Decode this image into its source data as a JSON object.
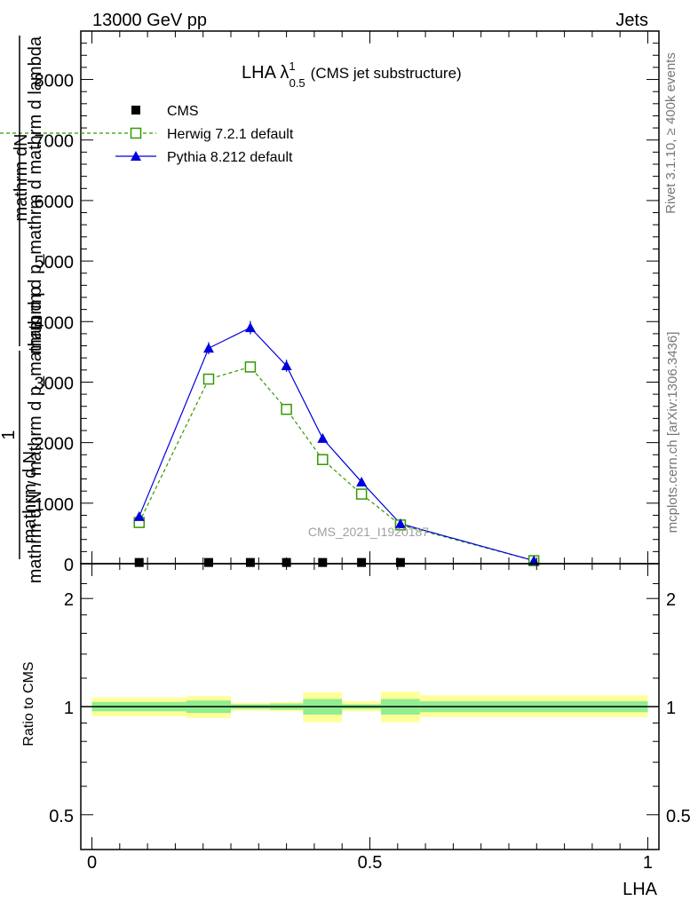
{
  "header": {
    "left": "13000 GeV pp",
    "right": "Jets"
  },
  "side": {
    "rivet": "Rivet 3.1.10, ≥ 400k events",
    "mcplots": "mcplots.cern.ch [arXiv:1306.3436]"
  },
  "chart_data": {
    "type": "line",
    "title_main": "LHA λ",
    "title_sup": "1",
    "title_sub": "0.5",
    "title_note": "(CMS jet substructure)",
    "watermark": "CMS_2021_I1920187",
    "ylabel_num": "mathrm dN",
    "ylabel_den": "mathrm d p_mathrm d mathrm d lambda",
    "ylabel_one": "1",
    "ylabel_den2": "mathrm d N / mathrm d p_mathrm d p",
    "ylabel_den3": "mathrm d N",
    "xlabel": "LHA",
    "ratio_ylabel": "Ratio to CMS",
    "xlim": [
      -0.02,
      1.02
    ],
    "ylim": [
      0,
      8800
    ],
    "yticks": [
      0,
      1000,
      2000,
      3000,
      4000,
      5000,
      6000,
      7000,
      8000
    ],
    "ytick_labels": [
      "0",
      "1000",
      "2000",
      "3000",
      "4000",
      "5000",
      "6000",
      "7000",
      "8000"
    ],
    "xticks": [
      0,
      0.5,
      1
    ],
    "xtick_labels": [
      "0",
      "0.5",
      "1"
    ],
    "ratio_yticks": [
      0.5,
      1,
      2
    ],
    "ratio_ytick_labels": [
      "0.5",
      "1",
      "2"
    ],
    "legend": [
      "CMS",
      "Herwig 7.2.1 default",
      "Pythia 8.212 default"
    ],
    "series": [
      {
        "name": "CMS",
        "color": "#000000",
        "x": [
          0.085,
          0.21,
          0.285,
          0.35,
          0.415,
          0.485,
          0.555
        ],
        "y": [
          20,
          20,
          20,
          20,
          20,
          20,
          20
        ]
      },
      {
        "name": "Herwig 7.2.1 default",
        "color": "#339900",
        "x": [
          0.085,
          0.21,
          0.285,
          0.35,
          0.415,
          0.485,
          0.555,
          0.795
        ],
        "y": [
          680,
          3050,
          3250,
          2550,
          1720,
          1150,
          640,
          50
        ]
      },
      {
        "name": "Pythia 8.212 default",
        "color": "#0000dd",
        "x": [
          0.085,
          0.21,
          0.285,
          0.35,
          0.415,
          0.485,
          0.555,
          0.795
        ],
        "y": [
          780,
          3560,
          3900,
          3270,
          2070,
          1350,
          660,
          50
        ],
        "yerr": [
          60,
          100,
          110,
          100,
          70,
          60,
          40,
          10
        ]
      }
    ],
    "ratio_bands": [
      {
        "x0": 0.0,
        "x1": 0.17,
        "inner": [
          0.97,
          1.03
        ],
        "outer": [
          0.94,
          1.06
        ]
      },
      {
        "x0": 0.17,
        "x1": 0.25,
        "inner": [
          0.96,
          1.04
        ],
        "outer": [
          0.93,
          1.07
        ]
      },
      {
        "x0": 0.25,
        "x1": 0.32,
        "inner": [
          0.985,
          1.015
        ],
        "outer": [
          0.975,
          1.025
        ]
      },
      {
        "x0": 0.32,
        "x1": 0.38,
        "inner": [
          0.98,
          1.02
        ],
        "outer": [
          0.97,
          1.03
        ]
      },
      {
        "x0": 0.38,
        "x1": 0.45,
        "inner": [
          0.95,
          1.05
        ],
        "outer": [
          0.905,
          1.095
        ]
      },
      {
        "x0": 0.45,
        "x1": 0.52,
        "inner": [
          0.985,
          1.015
        ],
        "outer": [
          0.97,
          1.035
        ]
      },
      {
        "x0": 0.52,
        "x1": 0.59,
        "inner": [
          0.95,
          1.05
        ],
        "outer": [
          0.905,
          1.1
        ]
      },
      {
        "x0": 0.59,
        "x1": 1.0,
        "inner": [
          0.965,
          1.035
        ],
        "outer": [
          0.935,
          1.075
        ]
      }
    ],
    "band_colors": {
      "inner": "#90ee90",
      "outer": "#ffff99"
    }
  }
}
